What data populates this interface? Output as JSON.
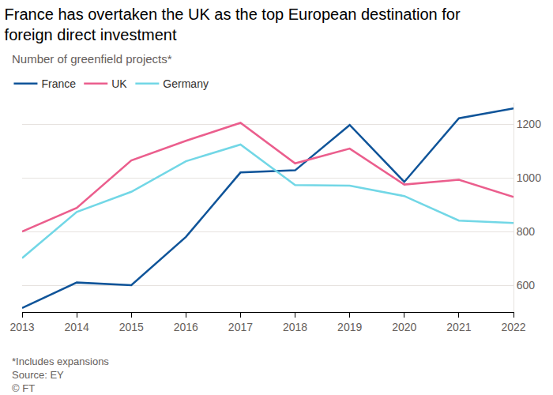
{
  "chart_data": {
    "type": "line",
    "title": "France has overtaken the UK as the top European destination for foreign direct investment",
    "subtitle": "Number of greenfield projects*",
    "x": [
      2013,
      2014,
      2015,
      2016,
      2017,
      2018,
      2019,
      2020,
      2021,
      2022
    ],
    "series": [
      {
        "name": "France",
        "color": "#0f5499",
        "values": [
          515,
          610,
          600,
          780,
          1020,
          1028,
          1197,
          985,
          1222,
          1259
        ]
      },
      {
        "name": "UK",
        "color": "#eb5e8d",
        "values": [
          800,
          888,
          1065,
          1138,
          1205,
          1054,
          1109,
          975,
          993,
          929
        ]
      },
      {
        "name": "Germany",
        "color": "#72d7e6",
        "values": [
          701,
          873,
          948,
          1062,
          1124,
          973,
          971,
          932,
          841,
          832
        ]
      }
    ],
    "xlim": [
      2013,
      2022
    ],
    "xticks": [
      2013,
      2014,
      2015,
      2016,
      2017,
      2018,
      2019,
      2020,
      2021,
      2022
    ],
    "ylim": [
      500,
      1280
    ],
    "yticks": [
      600,
      800,
      1000,
      1200
    ],
    "grid": true,
    "legend": "top left",
    "footnote": "*Includes expansions",
    "source": "Source: EY",
    "credit": "© FT"
  }
}
